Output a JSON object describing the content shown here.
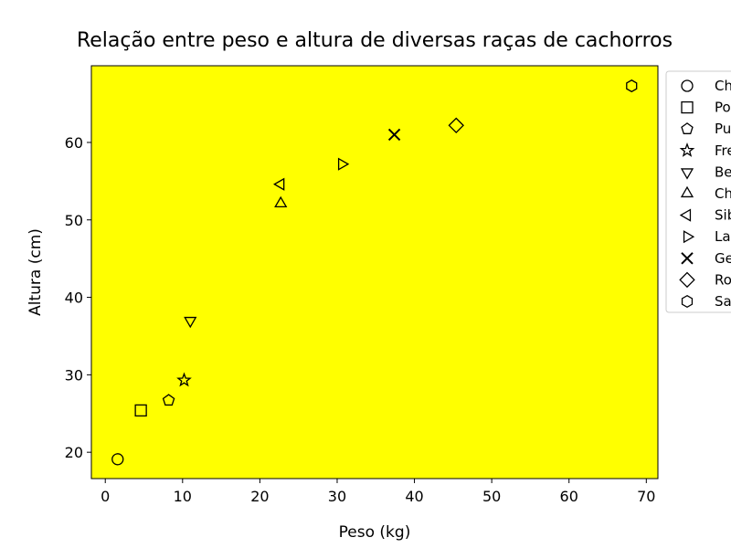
{
  "chart_data": {
    "type": "scatter",
    "title": "Relação entre peso e altura de diversas raças de cachorros",
    "xlabel": "Peso (kg)",
    "ylabel": "Altura (cm)",
    "xlim": [
      -1.8,
      71.5
    ],
    "ylim": [
      16.6,
      69.9
    ],
    "xticks": [
      0,
      10,
      20,
      30,
      40,
      50,
      60,
      70
    ],
    "yticks": [
      20,
      30,
      40,
      50,
      60
    ],
    "plot_background": "#ffff00",
    "grid": false,
    "legend_position": "right, outside plot",
    "series": [
      {
        "name": "Ch",
        "marker": "circle",
        "x": 1.6,
        "y": 19.1
      },
      {
        "name": "Po",
        "marker": "square",
        "x": 4.6,
        "y": 25.4
      },
      {
        "name": "Pu",
        "marker": "pentagon",
        "x": 8.2,
        "y": 26.7
      },
      {
        "name": "Fre",
        "marker": "star",
        "x": 10.2,
        "y": 29.3
      },
      {
        "name": "Be",
        "marker": "triangle-down",
        "x": 11.0,
        "y": 37.0
      },
      {
        "name": "Ch",
        "marker": "triangle-up",
        "x": 22.7,
        "y": 52.1
      },
      {
        "name": "Sib",
        "marker": "triangle-left",
        "x": 22.7,
        "y": 54.6
      },
      {
        "name": "La",
        "marker": "triangle-right",
        "x": 30.6,
        "y": 57.2
      },
      {
        "name": "Ge",
        "marker": "x",
        "x": 37.4,
        "y": 61.0
      },
      {
        "name": "Ro",
        "marker": "diamond",
        "x": 45.4,
        "y": 62.2
      },
      {
        "name": "Sa",
        "marker": "hexagon",
        "x": 68.1,
        "y": 67.3
      }
    ]
  }
}
